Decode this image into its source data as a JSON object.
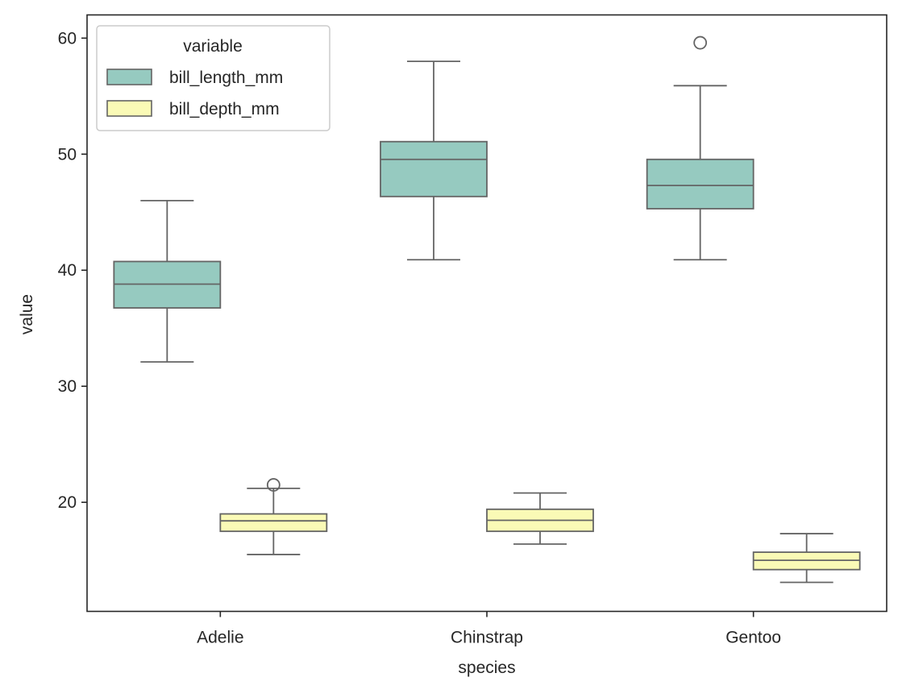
{
  "chart_data": {
    "type": "box",
    "xlabel": "species",
    "ylabel": "value",
    "ylim": [
      10.6,
      62.0
    ],
    "yticks": [
      20,
      30,
      40,
      50,
      60
    ],
    "categories": [
      "Adelie",
      "Chinstrap",
      "Gentoo"
    ],
    "grid": false,
    "legend": {
      "title": "variable",
      "placement": "top-left"
    },
    "series": [
      {
        "name": "bill_length_mm",
        "color": "#96CAC0",
        "boxes": [
          {
            "category": "Adelie",
            "whisker_low": 32.1,
            "q1": 36.75,
            "median": 38.8,
            "q3": 40.75,
            "whisker_high": 46.0,
            "outliers": []
          },
          {
            "category": "Chinstrap",
            "whisker_low": 40.9,
            "q1": 46.35,
            "median": 49.55,
            "q3": 51.08,
            "whisker_high": 58.0,
            "outliers": []
          },
          {
            "category": "Gentoo",
            "whisker_low": 40.9,
            "q1": 45.3,
            "median": 47.3,
            "q3": 49.55,
            "whisker_high": 55.9,
            "outliers": [
              59.6
            ]
          }
        ]
      },
      {
        "name": "bill_depth_mm",
        "color": "#FAFAB6",
        "boxes": [
          {
            "category": "Adelie",
            "whisker_low": 15.5,
            "q1": 17.5,
            "median": 18.4,
            "q3": 19.0,
            "whisker_high": 21.2,
            "outliers": [
              21.5
            ]
          },
          {
            "category": "Chinstrap",
            "whisker_low": 16.4,
            "q1": 17.5,
            "median": 18.45,
            "q3": 19.4,
            "whisker_high": 20.8,
            "outliers": []
          },
          {
            "category": "Gentoo",
            "whisker_low": 13.1,
            "q1": 14.2,
            "median": 15.0,
            "q3": 15.7,
            "whisker_high": 17.3,
            "outliers": []
          }
        ]
      }
    ]
  }
}
